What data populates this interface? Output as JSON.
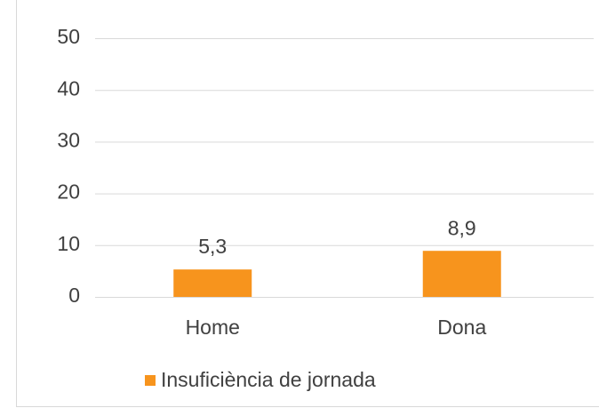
{
  "chart_data": {
    "type": "bar",
    "categories": [
      "Home",
      "Dona"
    ],
    "series": [
      {
        "name": "Insuficiència de jornada",
        "color": "#f7941d",
        "values": [
          5.3,
          8.9
        ],
        "value_labels": [
          "5,3",
          "8,9"
        ]
      }
    ],
    "ylim": [
      0,
      50
    ],
    "yticks": [
      0,
      10,
      20,
      30,
      40,
      50
    ],
    "grid": true,
    "legend": "bottom"
  }
}
